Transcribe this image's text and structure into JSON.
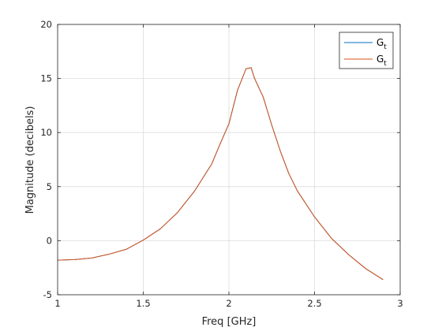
{
  "chart_data": {
    "type": "line",
    "xlabel": "Freq [GHz]",
    "ylabel": "Magnitude (decibels)",
    "xlim": [
      1,
      3
    ],
    "ylim": [
      -5,
      20
    ],
    "x_ticks": [
      "1",
      "1.5",
      "2",
      "2.5",
      "3"
    ],
    "y_ticks": [
      "-5",
      "0",
      "5",
      "10",
      "15",
      "20"
    ],
    "grid": true,
    "legend_position": "top-right",
    "series": [
      {
        "name": "G",
        "name_subscript": "t",
        "color": "#0072BD",
        "x": [
          1.0,
          1.1,
          1.2,
          1.3,
          1.4,
          1.5,
          1.6,
          1.7,
          1.8,
          1.9,
          1.95,
          2.0,
          2.05,
          2.1,
          2.13,
          2.15,
          2.2,
          2.25,
          2.3,
          2.35,
          2.4,
          2.5,
          2.6,
          2.7,
          2.8,
          2.9
        ],
        "y": [
          -1.8,
          -1.75,
          -1.6,
          -1.25,
          -0.8,
          0.05,
          1.1,
          2.6,
          4.6,
          7.1,
          9.0,
          10.8,
          13.9,
          15.9,
          16.0,
          15.0,
          13.3,
          10.7,
          8.3,
          6.2,
          4.6,
          2.2,
          0.2,
          -1.3,
          -2.6,
          -3.6
        ]
      },
      {
        "name": "G",
        "name_subscript": "t",
        "color": "#D95319",
        "x": [
          1.0,
          1.1,
          1.2,
          1.3,
          1.4,
          1.5,
          1.6,
          1.7,
          1.8,
          1.9,
          1.95,
          2.0,
          2.05,
          2.1,
          2.13,
          2.15,
          2.2,
          2.25,
          2.3,
          2.35,
          2.4,
          2.5,
          2.6,
          2.7,
          2.8,
          2.9
        ],
        "y": [
          -1.8,
          -1.75,
          -1.6,
          -1.25,
          -0.8,
          0.05,
          1.1,
          2.6,
          4.6,
          7.1,
          9.0,
          10.8,
          13.9,
          15.9,
          16.0,
          15.0,
          13.3,
          10.7,
          8.3,
          6.2,
          4.6,
          2.2,
          0.2,
          -1.3,
          -2.6,
          -3.6
        ]
      }
    ]
  }
}
